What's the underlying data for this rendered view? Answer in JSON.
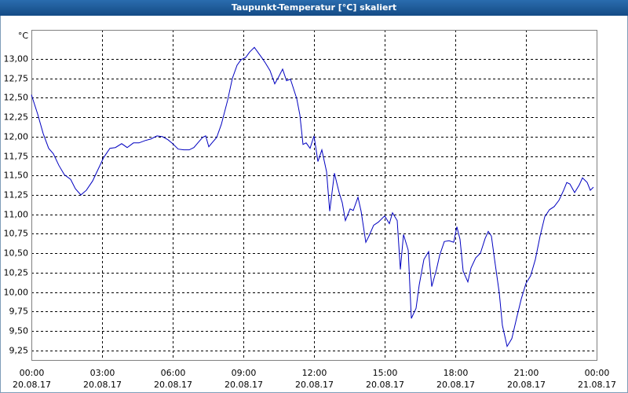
{
  "chart_data": {
    "type": "line",
    "title": "Taupunkt-Temperatur [°C] skaliert",
    "y_unit": "°C",
    "x": [
      0,
      0.267,
      0.5,
      0.733,
      0.933,
      1.167,
      1.4,
      1.667,
      1.867,
      2.1,
      2.333,
      2.6,
      2.833,
      3.067,
      3.333,
      3.567,
      3.833,
      4.067,
      4.333,
      4.567,
      4.833,
      5.067,
      5.333,
      5.567,
      5.8,
      6,
      6.233,
      6.467,
      6.7,
      6.9,
      7.067,
      7.267,
      7.4,
      7.533,
      7.667,
      7.867,
      8.067,
      8.333,
      8.533,
      8.733,
      8.9,
      9.1,
      9.267,
      9.467,
      9.633,
      9.8,
      9.933,
      10.133,
      10.333,
      10.5,
      10.667,
      10.833,
      11,
      11.267,
      11.4,
      11.533,
      11.667,
      11.833,
      12,
      12.167,
      12.333,
      12.533,
      12.667,
      12.867,
      13.067,
      13.2,
      13.333,
      13.533,
      13.667,
      13.867,
      14,
      14.2,
      14.333,
      14.533,
      14.733,
      15,
      15.2,
      15.333,
      15.533,
      15.667,
      15.8,
      16,
      16.133,
      16.333,
      16.467,
      16.667,
      16.867,
      17,
      17.2,
      17.333,
      17.533,
      17.733,
      17.933,
      18.067,
      18.2,
      18.333,
      18.533,
      18.667,
      18.867,
      19.067,
      19.267,
      19.4,
      19.533,
      19.667,
      19.867,
      20,
      20.2,
      20.4,
      20.6,
      20.8,
      21,
      21.2,
      21.4,
      21.6,
      21.8,
      22,
      22.2,
      22.4,
      22.6,
      22.733,
      22.867,
      23.067,
      23.267,
      23.4,
      23.6,
      23.733,
      23.867
    ],
    "series": [
      {
        "name": "Taupunkt-Temperatur",
        "color": "#0000c0",
        "values": [
          12.54,
          12.29,
          12.04,
          11.85,
          11.78,
          11.63,
          11.51,
          11.45,
          11.33,
          11.25,
          11.31,
          11.43,
          11.58,
          11.73,
          11.85,
          11.86,
          11.91,
          11.86,
          11.92,
          11.92,
          11.95,
          11.97,
          12.01,
          12.0,
          11.96,
          11.91,
          11.84,
          11.83,
          11.83,
          11.86,
          11.92,
          11.99,
          12.01,
          11.87,
          11.92,
          11.99,
          12.16,
          12.47,
          12.75,
          12.92,
          12.99,
          13.02,
          13.09,
          13.15,
          13.08,
          13.01,
          12.95,
          12.85,
          12.68,
          12.77,
          12.87,
          12.72,
          12.74,
          12.49,
          12.28,
          11.9,
          11.92,
          11.85,
          12.01,
          11.68,
          11.83,
          11.55,
          11.04,
          11.53,
          11.28,
          11.15,
          10.92,
          11.07,
          11.05,
          11.22,
          11.04,
          10.64,
          10.72,
          10.86,
          10.9,
          10.98,
          10.88,
          11.02,
          10.92,
          10.29,
          10.74,
          10.54,
          9.66,
          9.79,
          10.09,
          10.42,
          10.52,
          10.07,
          10.29,
          10.47,
          10.65,
          10.66,
          10.64,
          10.84,
          10.68,
          10.27,
          10.13,
          10.31,
          10.44,
          10.5,
          10.69,
          10.78,
          10.72,
          10.42,
          9.99,
          9.57,
          9.3,
          9.4,
          9.66,
          9.91,
          10.11,
          10.21,
          10.42,
          10.72,
          10.97,
          11.06,
          11.1,
          11.18,
          11.31,
          11.41,
          11.39,
          11.28,
          11.38,
          11.47,
          11.41,
          11.31,
          11.35
        ]
      }
    ],
    "xlim": [
      0,
      24
    ],
    "xticks": [
      {
        "value": 0,
        "label": [
          "00:00",
          "20.08.17"
        ]
      },
      {
        "value": 3,
        "label": [
          "03:00",
          "20.08.17"
        ]
      },
      {
        "value": 6,
        "label": [
          "06:00",
          "20.08.17"
        ]
      },
      {
        "value": 9,
        "label": [
          "09:00",
          "20.08.17"
        ]
      },
      {
        "value": 12,
        "label": [
          "12:00",
          "20.08.17"
        ]
      },
      {
        "value": 15,
        "label": [
          "15:00",
          "20.08.17"
        ]
      },
      {
        "value": 18,
        "label": [
          "18:00",
          "20.08.17"
        ]
      },
      {
        "value": 21,
        "label": [
          "21:00",
          "20.08.17"
        ]
      },
      {
        "value": 24,
        "label": [
          "00:00",
          "21.08.17"
        ]
      }
    ],
    "ylim": [
      9.125,
      13.375
    ],
    "yticks": [
      {
        "value": 9.25,
        "label": "9,25"
      },
      {
        "value": 9.5,
        "label": "9,50"
      },
      {
        "value": 9.75,
        "label": "9,75"
      },
      {
        "value": 10,
        "label": "10,00"
      },
      {
        "value": 10.25,
        "label": "10,25"
      },
      {
        "value": 10.5,
        "label": "10,50"
      },
      {
        "value": 10.75,
        "label": "10,75"
      },
      {
        "value": 11,
        "label": "11,00"
      },
      {
        "value": 11.25,
        "label": "11,25"
      },
      {
        "value": 11.5,
        "label": "11,50"
      },
      {
        "value": 11.75,
        "label": "11,75"
      },
      {
        "value": 12,
        "label": "12,00"
      },
      {
        "value": 12.25,
        "label": "12,25"
      },
      {
        "value": 12.5,
        "label": "12,50"
      },
      {
        "value": 12.75,
        "label": "12,75"
      },
      {
        "value": 13,
        "label": "13,00"
      }
    ],
    "grid": true
  }
}
